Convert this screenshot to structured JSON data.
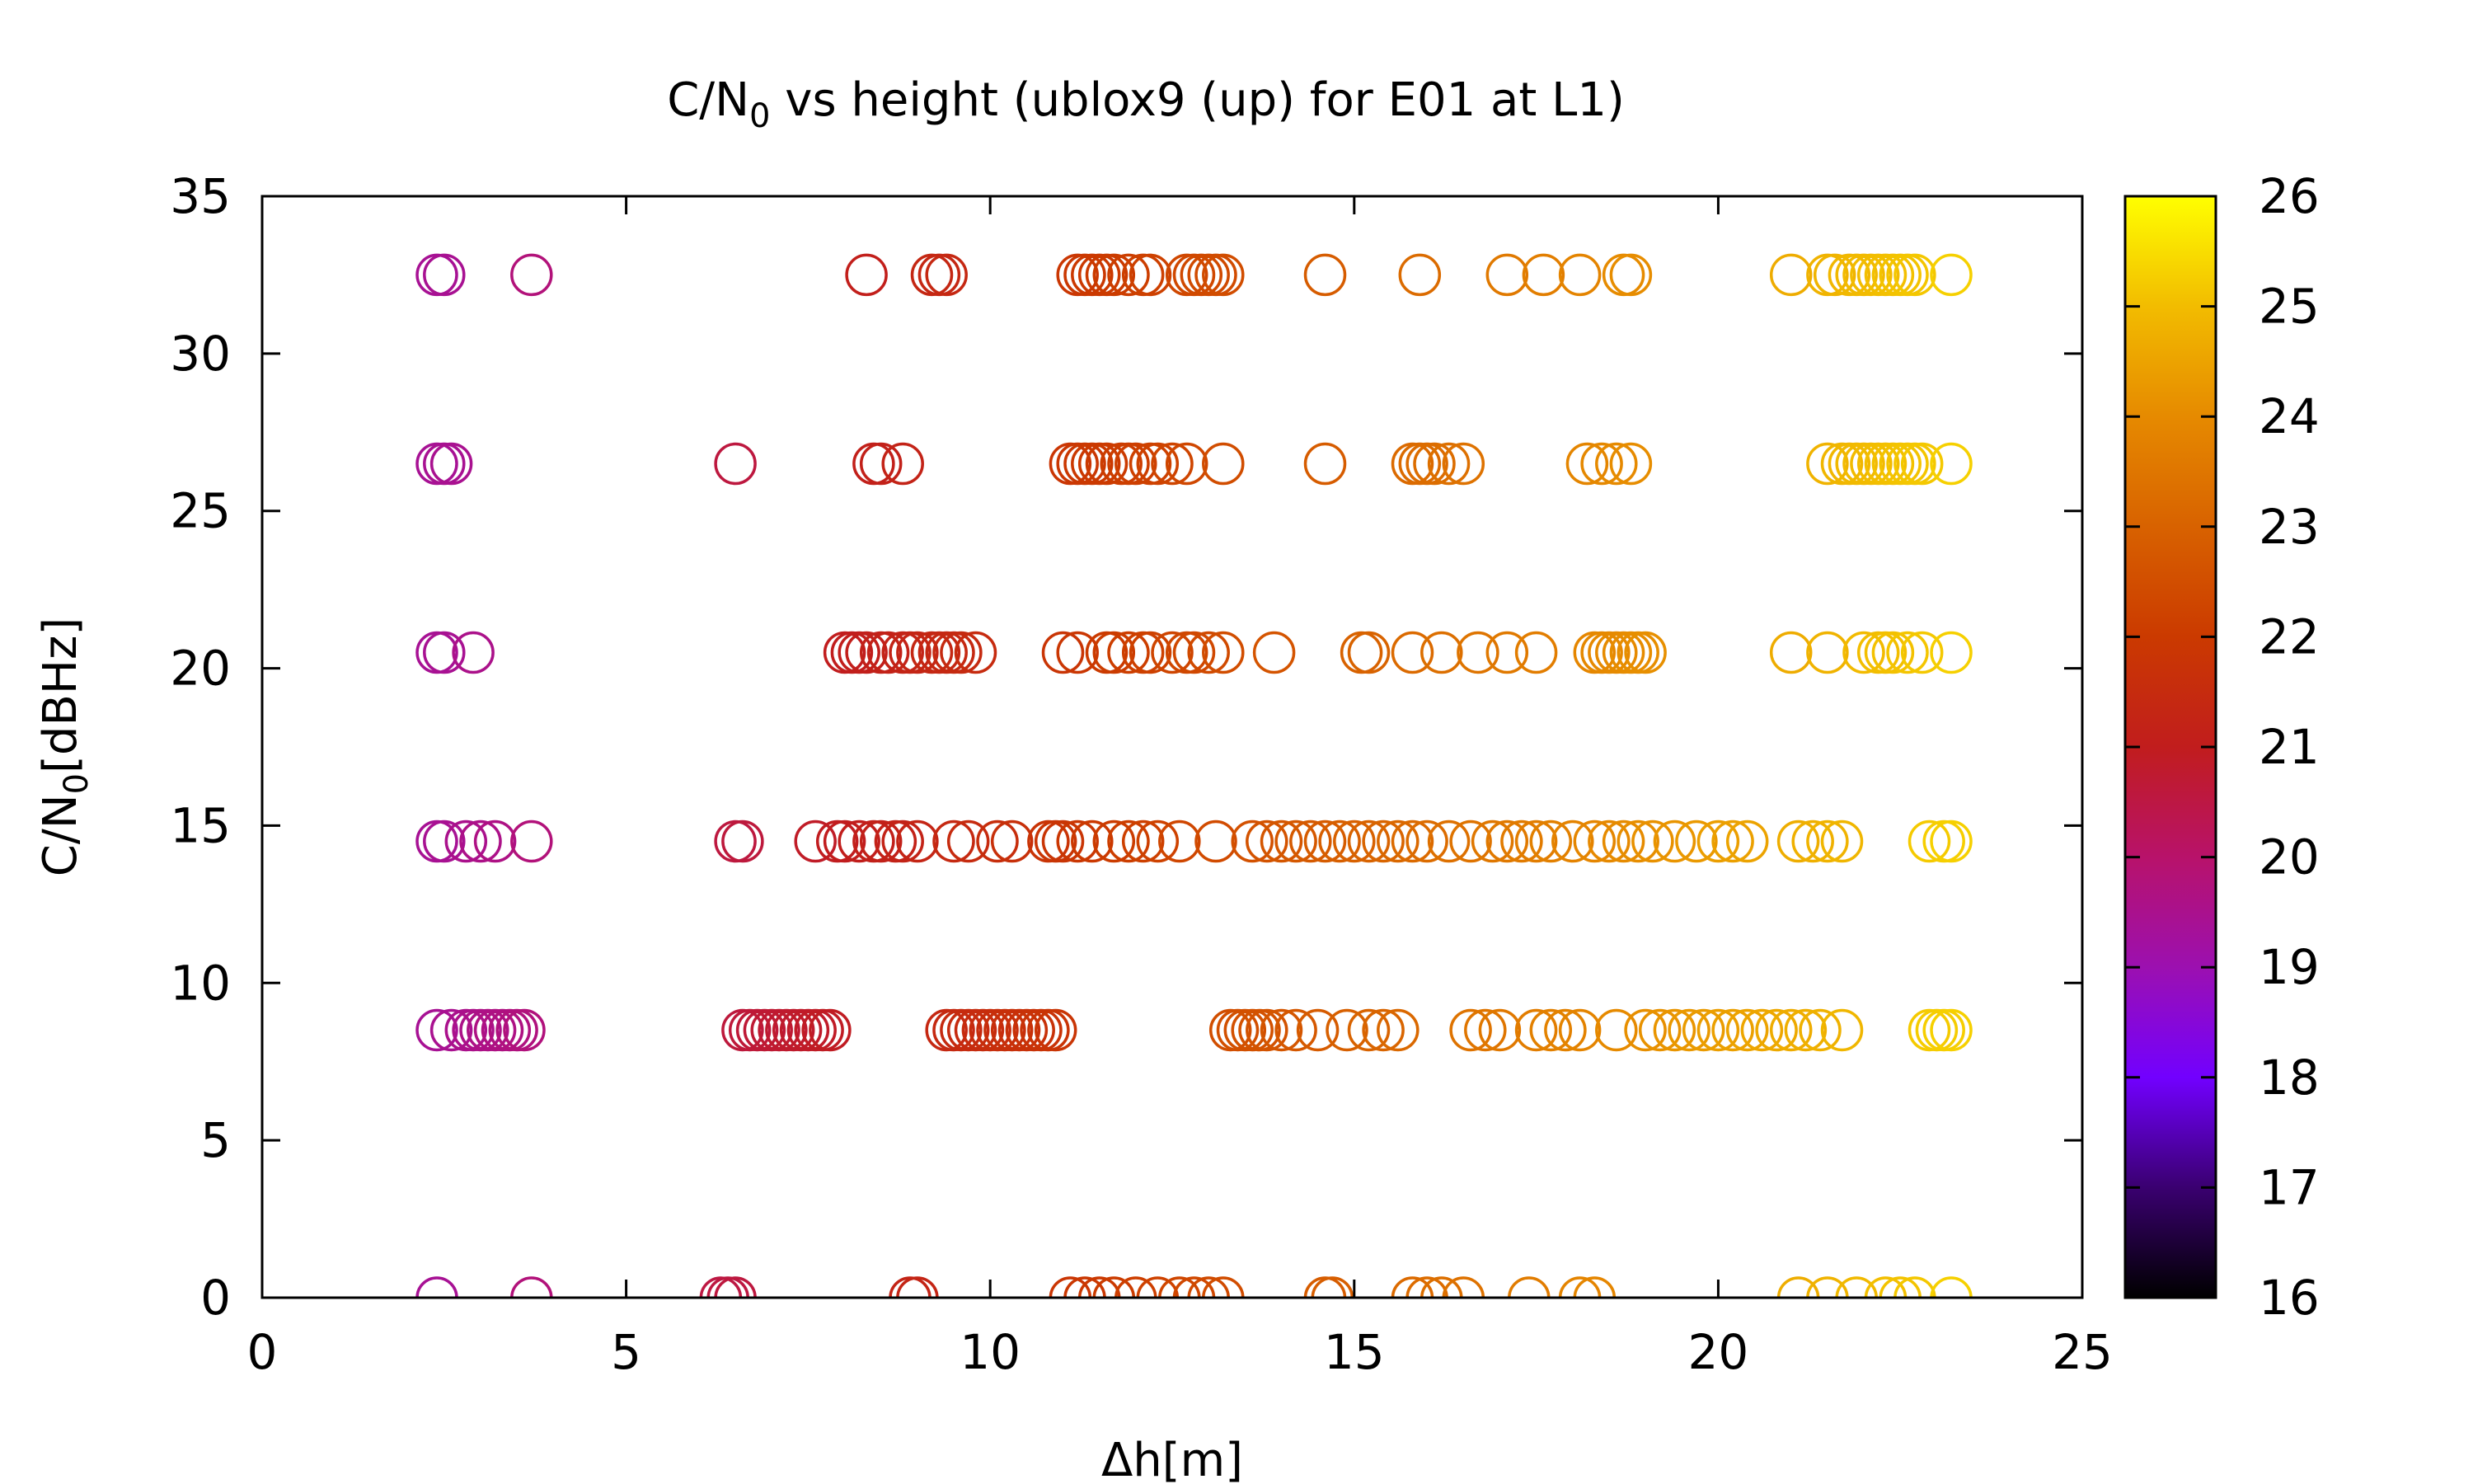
{
  "chart_data": {
    "type": "scatter",
    "title": {
      "main": "C/N",
      "sub": "0",
      "rest": " vs height (ublox9 (up) for E01 at L1)"
    },
    "xlabel": "Δh[m]",
    "ylabel": {
      "main": "C/N",
      "sub": "0",
      "rest": "[dBHz]"
    },
    "xlim": [
      0,
      25
    ],
    "ylim": [
      0,
      35
    ],
    "xticks": [
      "0",
      "5",
      "10",
      "15",
      "20",
      "25"
    ],
    "yticks": [
      "0",
      "5",
      "10",
      "15",
      "20",
      "25",
      "30",
      "35"
    ],
    "colorbar": {
      "min": 16,
      "max": 26,
      "ticks": [
        "16",
        "17",
        "18",
        "19",
        "20",
        "21",
        "22",
        "23",
        "24",
        "25",
        "26"
      ],
      "palette": [
        "#000000",
        "#3a0070",
        "#7200ff",
        "#9c10b0",
        "#b8126a",
        "#c11d1d",
        "#cb3a00",
        "#d86200",
        "#e68a00",
        "#f2bc00",
        "#ffff00"
      ]
    },
    "grid": false,
    "legend": "none",
    "marker": "open-circle",
    "series": [
      {
        "y": 32.5,
        "x": [
          2.4,
          2.5,
          3.7,
          8.3,
          9.2,
          9.3,
          9.4,
          11.2,
          11.3,
          11.4,
          11.5,
          11.6,
          11.7,
          11.9,
          12.1,
          12.2,
          12.7,
          12.8,
          12.9,
          13.0,
          13.1,
          13.2,
          14.6,
          15.9,
          17.1,
          17.6,
          18.1,
          18.7,
          18.8,
          21.0,
          21.5,
          21.6,
          21.8,
          21.9,
          22.0,
          22.1,
          22.2,
          22.3,
          22.4,
          22.5,
          22.6,
          22.7,
          23.2
        ]
      },
      {
        "y": 26.5,
        "x": [
          2.4,
          2.5,
          2.6,
          6.5,
          8.4,
          8.5,
          8.8,
          11.1,
          11.2,
          11.3,
          11.4,
          11.5,
          11.6,
          11.8,
          11.9,
          12.0,
          12.2,
          12.3,
          12.5,
          12.7,
          13.2,
          14.6,
          15.8,
          15.9,
          16.0,
          16.1,
          16.3,
          16.5,
          18.2,
          18.4,
          18.6,
          18.8,
          21.5,
          21.7,
          21.8,
          21.9,
          22.0,
          22.1,
          22.2,
          22.3,
          22.4,
          22.5,
          22.6,
          22.7,
          22.8,
          23.2
        ]
      },
      {
        "y": 20.5,
        "x": [
          2.4,
          2.5,
          2.9,
          8.0,
          8.1,
          8.2,
          8.3,
          8.5,
          8.6,
          8.8,
          8.9,
          9.0,
          9.2,
          9.3,
          9.4,
          9.5,
          9.6,
          9.8,
          11.0,
          11.2,
          11.6,
          11.7,
          11.9,
          12.1,
          12.2,
          12.5,
          12.7,
          12.8,
          13.0,
          13.2,
          13.9,
          15.1,
          15.2,
          15.8,
          16.2,
          16.7,
          17.1,
          17.5,
          18.3,
          18.4,
          18.5,
          18.6,
          18.7,
          18.8,
          18.9,
          19.0,
          21.0,
          21.5,
          22.0,
          22.2,
          22.3,
          22.4,
          22.6,
          22.8,
          23.2
        ]
      },
      {
        "y": 14.5,
        "x": [
          2.4,
          2.5,
          2.8,
          3.0,
          3.2,
          3.7,
          6.5,
          6.6,
          7.6,
          7.9,
          8.0,
          8.2,
          8.4,
          8.5,
          8.7,
          8.8,
          9.0,
          9.5,
          9.7,
          10.1,
          10.3,
          10.8,
          10.9,
          11.0,
          11.2,
          11.4,
          11.7,
          11.9,
          12.1,
          12.3,
          12.6,
          13.1,
          13.6,
          13.8,
          14.0,
          14.2,
          14.4,
          14.6,
          14.8,
          15.0,
          15.2,
          15.4,
          15.6,
          15.8,
          16.0,
          16.3,
          16.6,
          16.9,
          17.1,
          17.3,
          17.5,
          17.7,
          18.0,
          18.3,
          18.5,
          18.7,
          18.9,
          19.1,
          19.4,
          19.7,
          20.0,
          20.2,
          20.4,
          21.1,
          21.3,
          21.5,
          21.7,
          22.9,
          23.1,
          23.2
        ]
      },
      {
        "y": 8.5,
        "x": [
          2.4,
          2.6,
          2.8,
          2.9,
          3.0,
          3.1,
          3.2,
          3.3,
          3.4,
          3.5,
          3.6,
          6.6,
          6.7,
          6.8,
          6.9,
          7.0,
          7.1,
          7.2,
          7.3,
          7.4,
          7.5,
          7.6,
          7.7,
          7.8,
          9.4,
          9.5,
          9.6,
          9.7,
          9.8,
          9.9,
          10.0,
          10.1,
          10.2,
          10.3,
          10.4,
          10.5,
          10.6,
          10.7,
          10.8,
          10.9,
          13.3,
          13.4,
          13.5,
          13.6,
          13.7,
          13.8,
          14.0,
          14.2,
          14.5,
          14.9,
          15.2,
          15.4,
          15.6,
          16.6,
          16.8,
          17.0,
          17.5,
          17.7,
          17.9,
          18.1,
          18.6,
          19.0,
          19.2,
          19.4,
          19.6,
          19.8,
          20.0,
          20.2,
          20.4,
          20.6,
          20.8,
          21.0,
          21.2,
          21.4,
          21.7,
          22.9,
          23.0,
          23.1,
          23.2
        ]
      },
      {
        "y": 0.0,
        "x": [
          2.4,
          3.7,
          6.3,
          6.4,
          6.5,
          8.9,
          9.0,
          11.1,
          11.3,
          11.5,
          11.7,
          12.0,
          12.3,
          12.6,
          12.8,
          13.0,
          13.2,
          14.6,
          14.7,
          15.8,
          16.0,
          16.2,
          16.5,
          17.4,
          18.1,
          18.3,
          21.1,
          21.5,
          21.9,
          22.3,
          22.5,
          22.7,
          23.2
        ]
      }
    ]
  }
}
